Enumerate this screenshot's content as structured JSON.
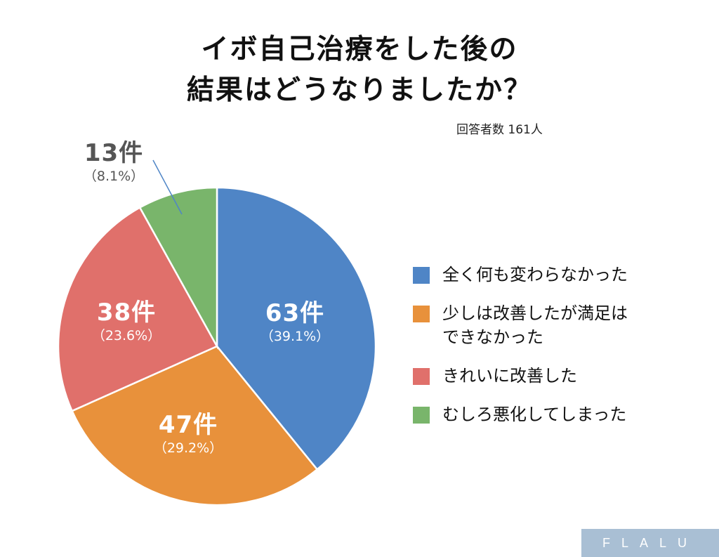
{
  "title_lines": [
    "イボ自己治療をした後の",
    "結果はどうなりましたか？"
  ],
  "respondents": "回答者数 161人",
  "colors": {
    "blue": "#4f85c6",
    "orange": "#e8913b",
    "red": "#e0706b",
    "green": "#79b56b"
  },
  "chart_data": {
    "type": "pie",
    "categories": [
      "全く何も変わらなかった",
      "少しは改善したが満足はできなかった",
      "きれいに改善した",
      "むしろ悪化してしまった"
    ],
    "values": [
      63,
      47,
      38,
      13
    ],
    "labels": [
      "63件",
      "47件",
      "38件",
      "13件"
    ],
    "percent_labels": [
      "（39.1%）",
      "（29.2%）",
      "（23.6%）",
      "（8.1%）"
    ],
    "legend": [
      [
        "全く何も変わらなかった"
      ],
      [
        "少しは改善したが満足は",
        "できなかった"
      ],
      [
        "きれいに改善した"
      ],
      [
        "むしろ悪化してしまった"
      ]
    ],
    "legend_position": "right",
    "total": 161
  },
  "brand": "FLALU"
}
